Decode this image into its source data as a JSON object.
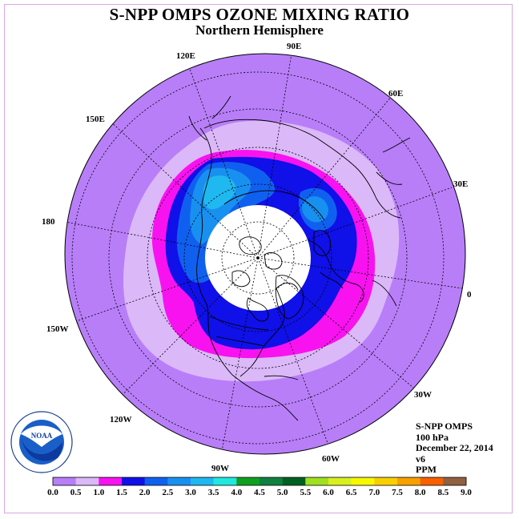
{
  "title": "S-NPP OMPS OZONE MIXING RATIO",
  "subtitle": "Northern Hemisphere",
  "longitude_labels": {
    "lon_0": "0",
    "lon_30e": "30E",
    "lon_60e": "60E",
    "lon_90e": "90E",
    "lon_120e": "120E",
    "lon_150e": "150E",
    "lon_180": "180",
    "lon_150w": "150W",
    "lon_120w": "120W",
    "lon_90w": "90W",
    "lon_60w": "60W",
    "lon_30w": "30W"
  },
  "info": {
    "instrument": "S-NPP OMPS",
    "pressure": "100 hPa",
    "date": "December 22, 2014",
    "version": "v6",
    "units": "PPM"
  },
  "logo_text": "NOAA",
  "colorbar": {
    "ticks": [
      "0.0",
      "0.5",
      "1.0",
      "1.5",
      "2.0",
      "2.5",
      "3.0",
      "3.5",
      "4.0",
      "4.5",
      "5.0",
      "5.5",
      "6.0",
      "6.5",
      "7.0",
      "7.5",
      "8.0",
      "8.5",
      "9.0"
    ],
    "colors": [
      "#b87ef8",
      "#dbb8f8",
      "#f812f0",
      "#1010e8",
      "#1060f0",
      "#1890f0",
      "#20b8f0",
      "#20e8e0",
      "#10a020",
      "#108040",
      "#006020",
      "#a0e020",
      "#d8f020",
      "#f8f800",
      "#f8d000",
      "#f8a000",
      "#f86000",
      "#f00010",
      "#906040"
    ]
  },
  "map_data": {
    "projection": "north polar stereographic",
    "field": "ozone mixing ratio at 100 hPa (ppm)",
    "missing_region": "polar night (no data)",
    "visible_levels": [
      "0.0-0.5",
      "0.5-1.0",
      "1.0-1.5",
      "1.5-2.0",
      "2.0-2.5",
      "2.5-3.0",
      "3.0-3.5"
    ]
  }
}
